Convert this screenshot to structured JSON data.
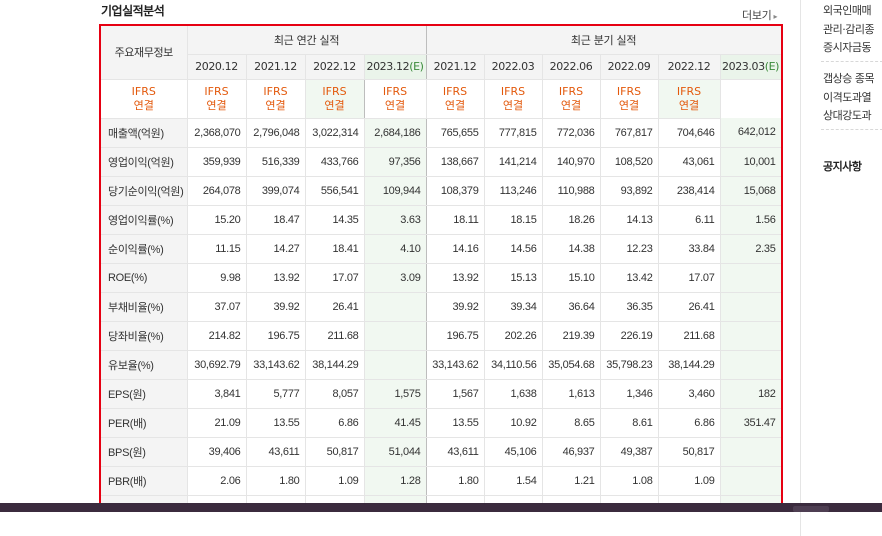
{
  "header": {
    "title": "기업실적분석",
    "more_label": "더보기"
  },
  "table": {
    "corner_label": "주요재무정보",
    "annual_label": "최근 연간 실적",
    "quarter_label": "최근 분기 실적",
    "annual_dates": [
      "2020.12",
      "2021.12",
      "2022.12",
      "2023.12"
    ],
    "quarter_dates": [
      "2021.12",
      "2022.03",
      "2022.06",
      "2022.09",
      "2022.12",
      "2023.03"
    ],
    "estimate_mark": "(E)",
    "ifrs_line1": "IFRS",
    "ifrs_line2": "연결",
    "rows": [
      {
        "label": "매출액(억원)",
        "values": [
          "2,368,070",
          "2,796,048",
          "3,022,314",
          "2,684,186",
          "765,655",
          "777,815",
          "772,036",
          "767,817",
          "704,646",
          "642,012"
        ]
      },
      {
        "label": "영업이익(억원)",
        "values": [
          "359,939",
          "516,339",
          "433,766",
          "97,356",
          "138,667",
          "141,214",
          "140,970",
          "108,520",
          "43,061",
          "10,001"
        ]
      },
      {
        "label": "당기순이익(억원)",
        "values": [
          "264,078",
          "399,074",
          "556,541",
          "109,944",
          "108,379",
          "113,246",
          "110,988",
          "93,892",
          "238,414",
          "15,068"
        ]
      },
      {
        "label": "영업이익률(%)",
        "values": [
          "15.20",
          "18.47",
          "14.35",
          "3.63",
          "18.11",
          "18.15",
          "18.26",
          "14.13",
          "6.11",
          "1.56"
        ]
      },
      {
        "label": "순이익률(%)",
        "values": [
          "11.15",
          "14.27",
          "18.41",
          "4.10",
          "14.16",
          "14.56",
          "14.38",
          "12.23",
          "33.84",
          "2.35"
        ]
      },
      {
        "label": "ROE(%)",
        "values": [
          "9.98",
          "13.92",
          "17.07",
          "3.09",
          "13.92",
          "15.13",
          "15.10",
          "13.42",
          "17.07",
          ""
        ]
      },
      {
        "label": "부채비율(%)",
        "values": [
          "37.07",
          "39.92",
          "26.41",
          "",
          "39.92",
          "39.34",
          "36.64",
          "36.35",
          "26.41",
          ""
        ]
      },
      {
        "label": "당좌비율(%)",
        "values": [
          "214.82",
          "196.75",
          "211.68",
          "",
          "196.75",
          "202.26",
          "219.39",
          "226.19",
          "211.68",
          ""
        ]
      },
      {
        "label": "유보율(%)",
        "values": [
          "30,692.79",
          "33,143.62",
          "38,144.29",
          "",
          "33,143.62",
          "34,110.56",
          "35,054.68",
          "35,798.23",
          "38,144.29",
          ""
        ]
      },
      {
        "label": "EPS(원)",
        "values": [
          "3,841",
          "5,777",
          "8,057",
          "1,575",
          "1,567",
          "1,638",
          "1,613",
          "1,346",
          "3,460",
          "182"
        ]
      },
      {
        "label": "PER(배)",
        "values": [
          "21.09",
          "13.55",
          "6.86",
          "41.45",
          "13.55",
          "10.92",
          "8.65",
          "8.61",
          "6.86",
          "351.47"
        ]
      },
      {
        "label": "BPS(원)",
        "values": [
          "39,406",
          "43,611",
          "50,817",
          "51,044",
          "43,611",
          "45,106",
          "46,937",
          "49,387",
          "50,817",
          ""
        ]
      },
      {
        "label": "PBR(배)",
        "values": [
          "2.06",
          "1.80",
          "1.09",
          "1.28",
          "1.80",
          "1.54",
          "1.21",
          "1.08",
          "1.09",
          ""
        ]
      }
    ]
  },
  "sidebar": {
    "lines_top": [
      "외국인매매",
      "관리·감리종",
      "증시자금동"
    ],
    "lines_mid": [
      "갭상승 종목",
      "이격도과열",
      "상대강도과"
    ],
    "notice_title": "공지사항"
  },
  "colors": {
    "frame": "#e60012",
    "ifrs": "#e3590c",
    "estimate_bg": "#f1f8f1",
    "estimate_mark": "#3a8a3a"
  }
}
